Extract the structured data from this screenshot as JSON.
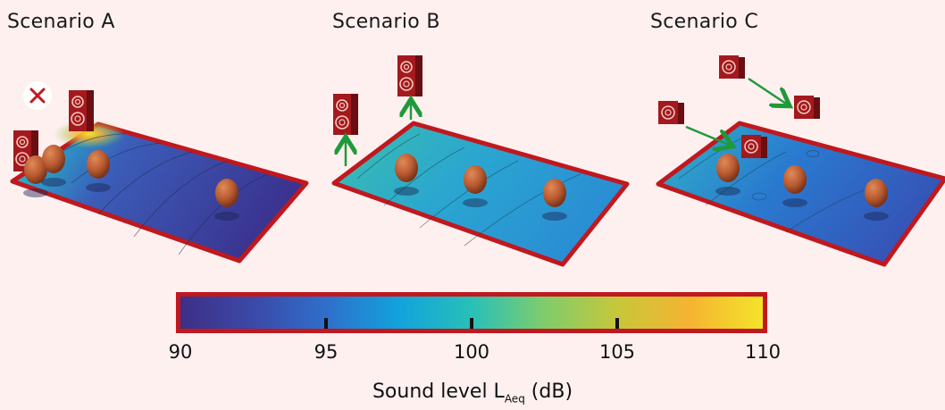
{
  "scenarios": [
    {
      "title": "Scenario A",
      "status": "rejected"
    },
    {
      "title": "Scenario B",
      "status": "speakers-raised"
    },
    {
      "title": "Scenario C",
      "status": "speakers-moved"
    }
  ],
  "icons": {
    "reject": "cross-icon",
    "speaker": "speaker-icon",
    "listener": "listener-head-icon",
    "move_arrow": "arrow-icon"
  },
  "colors": {
    "accent": "#c0181e",
    "arrow": "#1f9a3a",
    "background": "#fdf0ef",
    "colormap": [
      "#3e2f86",
      "#3b49a8",
      "#2f6fcb",
      "#11a3dc",
      "#28c0b8",
      "#7fcc6c",
      "#c7c73a",
      "#f5b432",
      "#f4e32a"
    ]
  },
  "colorbar": {
    "min": 90,
    "max": 110,
    "tick_values": [
      95,
      100,
      105
    ],
    "labels": [
      "90",
      "95",
      "100",
      "105",
      "110"
    ],
    "label_main": "Sound level L",
    "label_sub": "Aeq",
    "label_unit": " (dB)"
  }
}
